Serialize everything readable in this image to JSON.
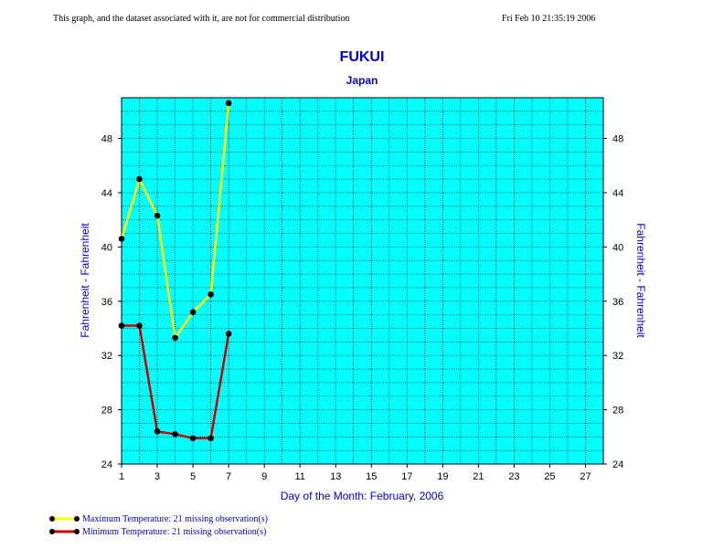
{
  "header": {
    "notice": "This graph, and the dataset associated with it, are not for commercial distribution",
    "timestamp": "Fri Feb 10 21:35:19 2006"
  },
  "colors": {
    "plot_bg": "#00ffff",
    "title": "#0000cc",
    "max_series": "#ffff00",
    "min_series": "#cc0000",
    "marker": "#000000"
  },
  "chart_data": {
    "type": "line",
    "title": "FUKUI",
    "subtitle": "Japan",
    "xlabel": "Day of the Month:  February, 2006",
    "ylabel_left": "Fahrenheit - Fahrenheit",
    "ylabel_right": "Fahrenheit - Fahrenheit",
    "xlim": [
      1,
      28
    ],
    "ylim": [
      24,
      51
    ],
    "x_ticks": [
      1,
      3,
      5,
      7,
      9,
      11,
      13,
      15,
      17,
      19,
      21,
      23,
      25,
      27
    ],
    "y_ticks": [
      24,
      28,
      32,
      36,
      40,
      44,
      48
    ],
    "grid": true,
    "series": [
      {
        "name": "Maximum Temperature:  21 missing observation(s)",
        "color": "#ffff00",
        "x": [
          1,
          2,
          3,
          4,
          5,
          6,
          7
        ],
        "y": [
          40.6,
          45.0,
          42.3,
          33.3,
          35.2,
          36.5,
          50.6
        ]
      },
      {
        "name": "Minimum Temperature:  21 missing observation(s)",
        "color": "#cc0000",
        "x": [
          1,
          2,
          3,
          4,
          5,
          6,
          7
        ],
        "y": [
          34.2,
          34.2,
          26.4,
          26.2,
          25.9,
          25.9,
          33.6
        ]
      }
    ]
  }
}
